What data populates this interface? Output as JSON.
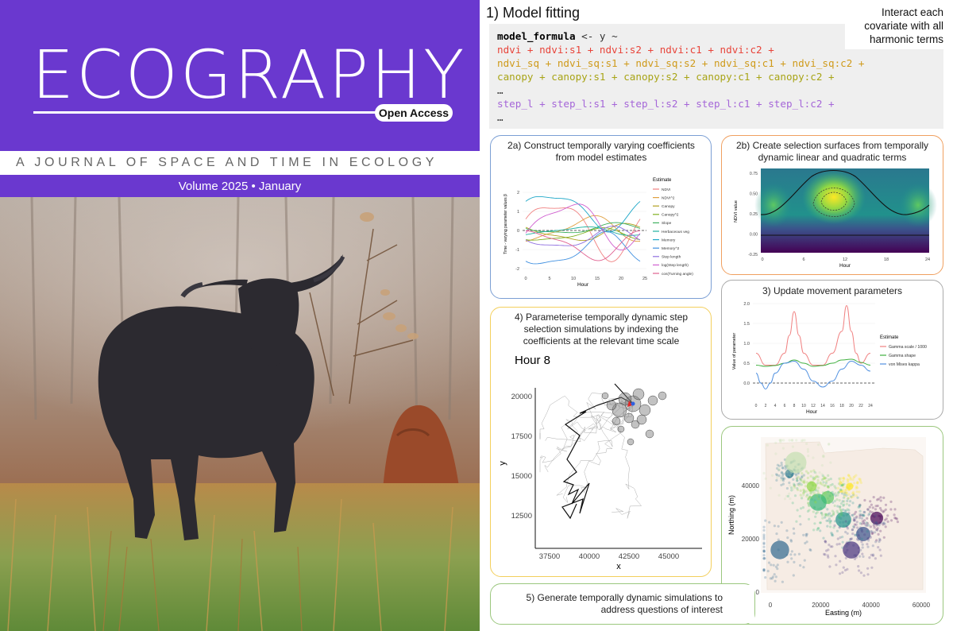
{
  "cover": {
    "journal": "ECOGRAPHY",
    "open_access": "Open Access",
    "tagline": "A JOURNAL OF SPACE AND TIME IN ECOLOGY",
    "volume": "Volume 2025 • January"
  },
  "header": {
    "title": "1) Model fitting",
    "note": [
      "Interact each",
      "covariate with all",
      "harmonic terms"
    ]
  },
  "code": {
    "line0_a": "model_formula",
    "line0_b": " <- y ~",
    "line1": "ndvi +  ndvi:s1 +  ndvi:s2 +  ndvi:c1 +  ndvi:c2 +",
    "line2": "ndvi_sq + ndvi_sq:s1 +  ndvi_sq:s2 + ndvi_sq:c1 +  ndvi_sq:c2 +",
    "line3": "canopy +  canopy:s1 +  canopy:s2 +  canopy:c1 +  canopy:c2 +",
    "ellipsis": "…",
    "line5": "step_l +  step_l:s1 +  step_l:s2 +  step_l:c1 +  step_l:c2 +"
  },
  "colors": {
    "brand": "#6a38cf",
    "ndvi": "#e8443a",
    "ndvi_sq": "#cf9a1a",
    "canopy": "#a8a416",
    "step": "#a566d8",
    "blue_border": "#7b9fd4",
    "orange_border": "#f0a060",
    "grey_border": "#aaaaaa",
    "yellow_border": "#f3cf5c",
    "green_border": "#9bc77e"
  },
  "p2a": {
    "title": [
      "2a) Construct temporally varying coefficients",
      "from model estimates"
    ],
    "chart_data": {
      "type": "line",
      "xlabel": "Hour",
      "ylabel": "Time - varying parameter values β",
      "x_ticks": [
        "0",
        "5",
        "10",
        "15",
        "20",
        "25"
      ],
      "y_ticks": [
        "-2",
        "-1",
        "0",
        "1",
        "2"
      ],
      "legend_title": "Estimate",
      "series": [
        {
          "name": "NDVI",
          "color": "#f08080"
        },
        {
          "name": "NDVI^2",
          "color": "#e0a040"
        },
        {
          "name": "Canopy",
          "color": "#b0a020"
        },
        {
          "name": "Canopy^2",
          "color": "#80b020"
        },
        {
          "name": "Slope",
          "color": "#40b060"
        },
        {
          "name": "Herbaceous veg",
          "color": "#20b0a0"
        },
        {
          "name": "Memory",
          "color": "#20a8c8"
        },
        {
          "name": "Memory^2",
          "color": "#4090e0"
        },
        {
          "name": "Step length",
          "color": "#9070e0"
        },
        {
          "name": "log(Step length)",
          "color": "#d060d0"
        },
        {
          "name": "cos(Turning angle)",
          "color": "#e06090"
        }
      ]
    }
  },
  "p2b": {
    "title": [
      "2b) Create selection surfaces from temporally",
      "dynamic linear and quadratic terms"
    ],
    "chart_data": {
      "type": "heatmap",
      "xlabel": "Hour",
      "ylabel": "NDVI value",
      "x_ticks": [
        "0",
        "6",
        "12",
        "18",
        "24"
      ],
      "y_ticks": [
        "0.75",
        "0.50",
        "0.25",
        "0.00",
        "-0.25"
      ]
    }
  },
  "p3": {
    "title": "3) Update movement parameters",
    "chart_data": {
      "type": "line",
      "xlabel": "Hour",
      "ylabel": "Value of parameter",
      "x_ticks": [
        "0",
        "2",
        "4",
        "6",
        "8",
        "10",
        "12",
        "14",
        "16",
        "18",
        "20",
        "22",
        "24"
      ],
      "y_ticks": [
        "2.0",
        "1.5",
        "1.0",
        "0.5",
        "0.0"
      ],
      "legend_title": "Estimate",
      "series": [
        {
          "name": "Gamma scale / 1000",
          "color": "#f08080",
          "x": [
            0,
            2,
            4,
            6,
            7,
            8,
            9,
            10,
            12,
            14,
            16,
            18,
            19,
            20,
            21,
            22,
            24
          ],
          "y": [
            0.75,
            0.45,
            0.45,
            0.75,
            1.2,
            1.8,
            1.2,
            0.75,
            0.45,
            0.45,
            0.75,
            1.3,
            1.95,
            1.3,
            0.75,
            0.5,
            0.75
          ]
        },
        {
          "name": "Gamma shape",
          "color": "#40b040",
          "x": [
            0,
            2,
            4,
            6,
            8,
            10,
            12,
            14,
            16,
            18,
            20,
            22,
            24
          ],
          "y": [
            0.45,
            0.42,
            0.44,
            0.5,
            0.58,
            0.5,
            0.42,
            0.44,
            0.5,
            0.58,
            0.6,
            0.52,
            0.45
          ]
        },
        {
          "name": "von Mises kappa",
          "color": "#5090e0",
          "x": [
            0,
            1,
            2,
            3,
            4,
            6,
            8,
            10,
            12,
            14,
            16,
            18,
            20,
            22,
            24
          ],
          "y": [
            0.25,
            0.0,
            -0.15,
            0.0,
            0.25,
            0.5,
            0.55,
            0.35,
            0.05,
            -0.1,
            0.05,
            0.35,
            0.55,
            0.45,
            0.3
          ]
        }
      ]
    }
  },
  "p4": {
    "title": [
      "4) Parameterise temporally dynamic step",
      "selection simulations by indexing the",
      "coefficients at the relevant time scale"
    ],
    "chart_data": {
      "type": "scatter",
      "title": "Hour 8",
      "xlabel": "x",
      "ylabel": "y",
      "x_ticks": [
        "37500",
        "40000",
        "42500",
        "45000"
      ],
      "y_ticks": [
        "20000",
        "17500",
        "15000",
        "12500"
      ]
    }
  },
  "p5": {
    "title": [
      "5) Generate temporally dynamic simulations to",
      "address questions of interest"
    ],
    "chart_data": {
      "type": "scatter",
      "xlabel": "Easting (m)",
      "ylabel": "Northing (m)",
      "x_ticks": [
        "0",
        "20000",
        "40000",
        "60000"
      ],
      "y_ticks": [
        "40000",
        "20000",
        "0"
      ]
    }
  }
}
